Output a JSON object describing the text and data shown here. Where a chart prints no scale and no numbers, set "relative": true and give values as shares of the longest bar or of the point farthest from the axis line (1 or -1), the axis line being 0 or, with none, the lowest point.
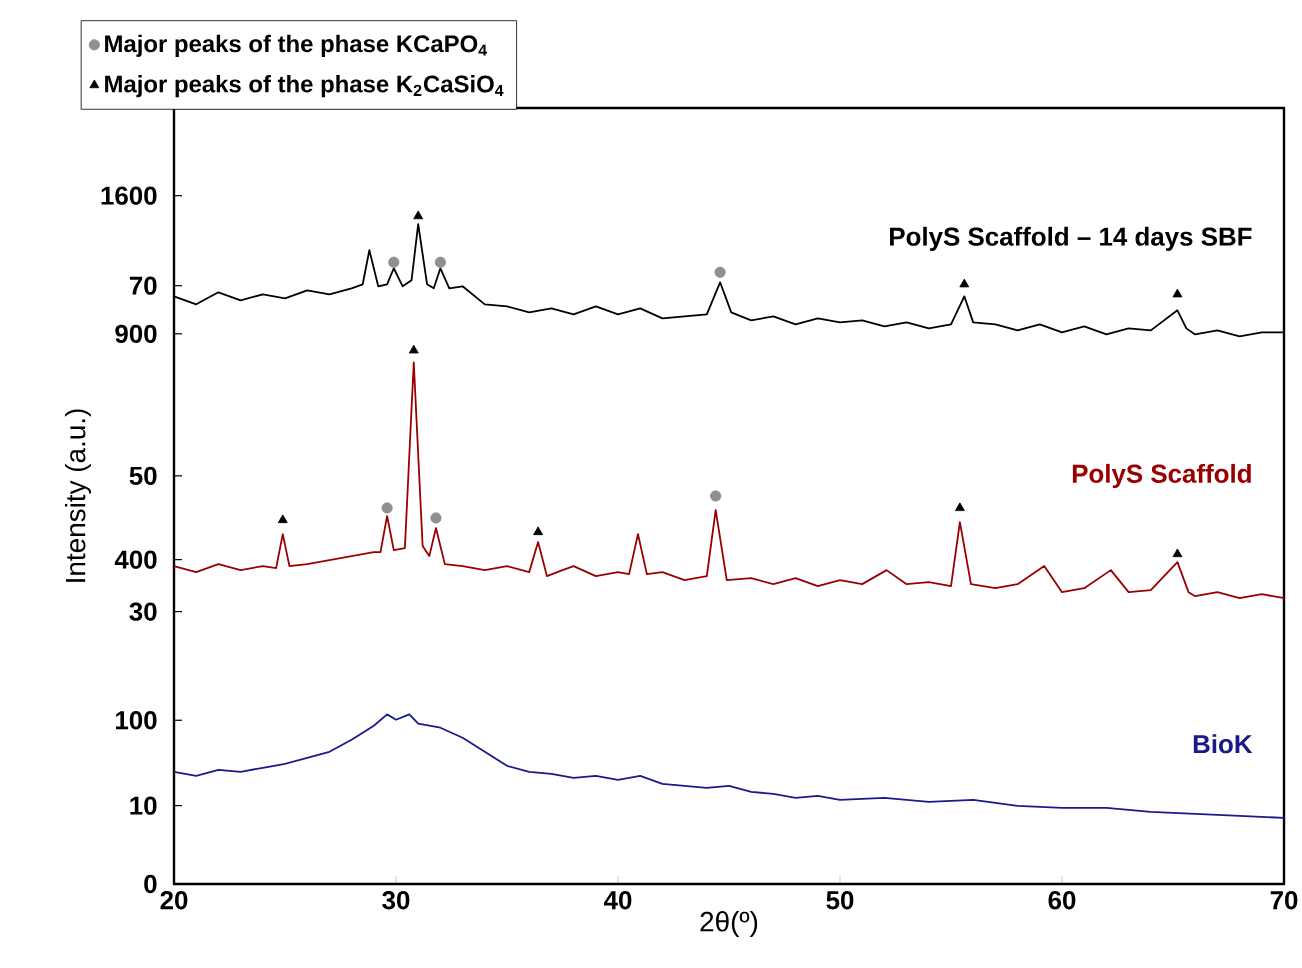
{
  "chart_data": {
    "type": "line",
    "xlabel": "2θ(º)",
    "ylabel": "Intensity (a.u.)",
    "xlim": [
      20,
      70
    ],
    "xticks": [
      20,
      30,
      40,
      50,
      60,
      70
    ],
    "relative": true,
    "annotations": [
      "1600",
      "70",
      "900",
      "50",
      "400",
      "30",
      "100",
      "10",
      "0"
    ],
    "grid": false,
    "legend": "top left",
    "series": [
      {
        "name": "PolyS Scaffold – 14 days SBF",
        "color": "#000000",
        "x": [
          20,
          21,
          22,
          23,
          24,
          25,
          26,
          27,
          28,
          28.5,
          28.8,
          29.2,
          29.6,
          29.9,
          30.3,
          30.7,
          31.0,
          31.4,
          31.7,
          32.0,
          32.4,
          33,
          34,
          35,
          36,
          37,
          38,
          39,
          40,
          41,
          42,
          43,
          44,
          44.6,
          45.1,
          46,
          47,
          48,
          49,
          50,
          51,
          52,
          53,
          54,
          55,
          55.6,
          56.0,
          57,
          58,
          59,
          60,
          61,
          62,
          63,
          64,
          65.2,
          65.6,
          66,
          67,
          68,
          69,
          70
        ],
        "values": [
          0.88,
          0.868,
          0.886,
          0.874,
          0.883,
          0.877,
          0.889,
          0.883,
          0.892,
          0.898,
          0.949,
          0.895,
          0.898,
          0.922,
          0.895,
          0.904,
          0.988,
          0.898,
          0.892,
          0.922,
          0.892,
          0.895,
          0.868,
          0.865,
          0.856,
          0.862,
          0.853,
          0.865,
          0.853,
          0.862,
          0.847,
          0.85,
          0.853,
          0.901,
          0.856,
          0.844,
          0.85,
          0.838,
          0.847,
          0.841,
          0.844,
          0.835,
          0.841,
          0.832,
          0.838,
          0.88,
          0.841,
          0.838,
          0.829,
          0.838,
          0.826,
          0.835,
          0.823,
          0.832,
          0.829,
          0.859,
          0.832,
          0.823,
          0.829,
          0.82,
          0.826,
          0.826
        ]
      },
      {
        "name": "PolyS Scaffold",
        "color": "#990000",
        "x": [
          20,
          21,
          22,
          23,
          24,
          24.6,
          24.9,
          25.2,
          26,
          27,
          28,
          29,
          29.3,
          29.6,
          29.9,
          30.4,
          30.8,
          31.2,
          31.5,
          31.8,
          32.2,
          33,
          34,
          35,
          36,
          36.4,
          36.8,
          37.5,
          38,
          39,
          40,
          40.5,
          40.9,
          41.3,
          42,
          43,
          44,
          44.4,
          44.9,
          46,
          47,
          48,
          49,
          50,
          51,
          52.1,
          53,
          54,
          55,
          55.4,
          55.9,
          57,
          58,
          59.2,
          60,
          61,
          62.2,
          63,
          64,
          65.2,
          65.7,
          66,
          67,
          68,
          69,
          70
        ],
        "values": [
          0.476,
          0.467,
          0.479,
          0.47,
          0.476,
          0.473,
          0.524,
          0.476,
          0.479,
          0.485,
          0.491,
          0.497,
          0.497,
          0.551,
          0.5,
          0.503,
          0.781,
          0.506,
          0.491,
          0.533,
          0.479,
          0.476,
          0.47,
          0.476,
          0.467,
          0.512,
          0.461,
          0.47,
          0.476,
          0.461,
          0.467,
          0.464,
          0.524,
          0.464,
          0.467,
          0.455,
          0.461,
          0.56,
          0.455,
          0.458,
          0.449,
          0.458,
          0.446,
          0.455,
          0.449,
          0.47,
          0.449,
          0.452,
          0.446,
          0.542,
          0.449,
          0.443,
          0.449,
          0.476,
          0.437,
          0.443,
          0.47,
          0.437,
          0.44,
          0.482,
          0.437,
          0.431,
          0.437,
          0.428,
          0.434,
          0.428
        ]
      },
      {
        "name": "BioK",
        "color": "#1a1a8c",
        "x": [
          20,
          21,
          22,
          23,
          24,
          25,
          26,
          27,
          28,
          29,
          29.6,
          30,
          30.6,
          31,
          32,
          33,
          34,
          35,
          36,
          37,
          38,
          39,
          40,
          41,
          42,
          43,
          44,
          45,
          46,
          47,
          48,
          49,
          50,
          52,
          54,
          56,
          58,
          60,
          62,
          64,
          66,
          68,
          70
        ],
        "values": [
          0.168,
          0.162,
          0.171,
          0.168,
          0.174,
          0.18,
          0.189,
          0.198,
          0.216,
          0.237,
          0.254,
          0.246,
          0.254,
          0.24,
          0.234,
          0.219,
          0.198,
          0.177,
          0.168,
          0.165,
          0.159,
          0.162,
          0.156,
          0.162,
          0.15,
          0.147,
          0.144,
          0.147,
          0.138,
          0.135,
          0.129,
          0.132,
          0.126,
          0.129,
          0.123,
          0.126,
          0.117,
          0.114,
          0.114,
          0.108,
          0.105,
          0.102,
          0.099
        ]
      },
      {
        "name": "Major peaks of the phase KCaPO$_{4}$",
        "type": "scatter",
        "marker": "circle",
        "color": "#909090",
        "x": [
          29.9,
          32.0,
          44.6,
          29.6,
          31.8,
          44.4
        ],
        "values": [
          0.931,
          0.931,
          0.916,
          0.563,
          0.548,
          0.581
        ]
      },
      {
        "name": "Major peaks of the phase K$_{2}$CaSiO$_{4}$",
        "type": "scatter",
        "marker": "triangle",
        "color": "#000000",
        "x": [
          31.0,
          55.6,
          65.2,
          24.9,
          30.8,
          36.4,
          55.4,
          65.2
        ],
        "values": [
          1,
          0.898,
          0.883,
          0.545,
          0.799,
          0.527,
          0.563,
          0.494
        ]
      }
    ]
  }
}
